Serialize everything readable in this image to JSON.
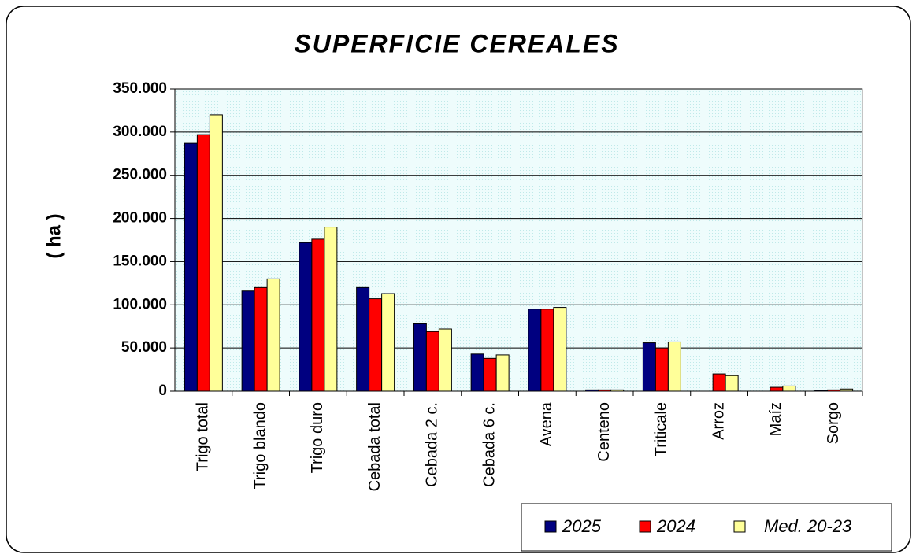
{
  "chart_data": {
    "type": "bar",
    "title": "SUPERFICIE CEREALES",
    "y_label": "( ha )",
    "categories": [
      "Trigo total",
      "Trigo blando",
      "Trigo duro",
      "Cebada total",
      "Cebada 2 c.",
      "Cebada 6 c.",
      "Avena",
      "Centeno",
      "Triticale",
      "Arroz",
      "Maíz",
      "Sorgo"
    ],
    "series": [
      {
        "name": "2025",
        "color": "#000080",
        "values": [
          287000,
          116000,
          172000,
          120000,
          78000,
          43000,
          95000,
          1500,
          56000,
          0,
          0,
          1000
        ]
      },
      {
        "name": "2024",
        "color": "#ff0000",
        "values": [
          297000,
          120000,
          176000,
          107000,
          69000,
          38000,
          95000,
          1500,
          50000,
          20000,
          4500,
          1500
        ]
      },
      {
        "name": "Med. 20-23",
        "color": "#ffff99",
        "values": [
          320000,
          130000,
          190000,
          113000,
          72000,
          42000,
          97000,
          1500,
          57000,
          18000,
          6000,
          2500
        ]
      }
    ],
    "ylim": [
      0,
      350000
    ],
    "yticks": [
      0,
      {
        "value": 50000,
        "label": "50.000"
      },
      {
        "value": 100000,
        "label": "100.000"
      },
      {
        "value": 150000,
        "label": "150.000"
      },
      {
        "value": 200000,
        "label": "200.000"
      },
      {
        "value": 250000,
        "label": "250.000"
      },
      {
        "value": 300000,
        "label": "300.000"
      },
      {
        "value": 350000,
        "label": "350.000"
      }
    ],
    "grid": true,
    "legend": "bottom-right"
  }
}
